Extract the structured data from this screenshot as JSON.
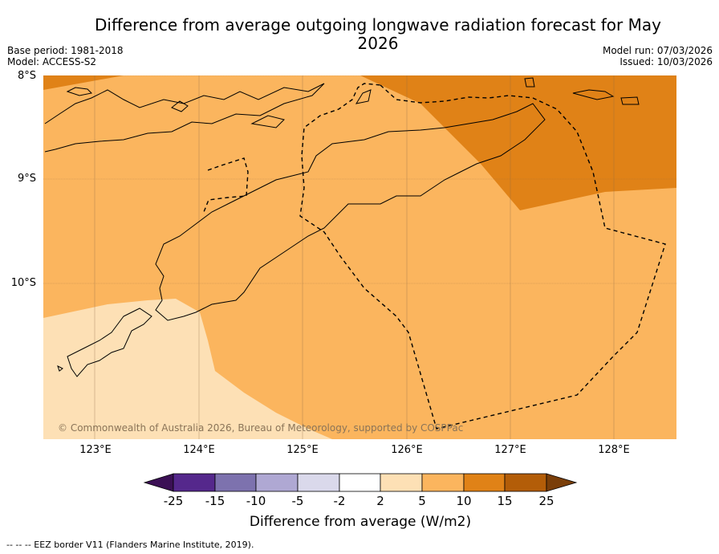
{
  "title": "Difference from average outgoing longwave radiation forecast for May 2026",
  "base_period": "Base period: 1981-2018",
  "model": "Model: ACCESS-S2",
  "model_run": "Model run: 07/03/2026",
  "issued": "Issued: 10/03/2026",
  "latitude_labels": [
    "8°S",
    "9°S",
    "10°S"
  ],
  "longitude_labels": [
    "123°E",
    "124°E",
    "125°E",
    "126°E",
    "127°E",
    "128°E"
  ],
  "copyright": "© Commonwealth of Australia 2026, Bureau of Meteorology, supported by COSPPac",
  "colorbar": {
    "ticks": [
      "-25",
      "-15",
      "-10",
      "-5",
      "-2",
      "2",
      "5",
      "10",
      "15",
      "25"
    ],
    "colors": [
      "#3b1055",
      "#55288c",
      "#7d72ae",
      "#afa8d3",
      "#dad9eb",
      "#ffffff",
      "#fde0b5",
      "#fbb55e",
      "#e08217",
      "#b35d08",
      "#7a3e09"
    ],
    "title": "Difference from average (W/m2)"
  },
  "map_colors": {
    "band_2_5": "#fde0b5",
    "band_5_10": "#fbb55e",
    "band_10_15": "#e08217"
  },
  "footer": "--  --  -- EEZ border V11 (Flanders Marine Institute, 2019)."
}
